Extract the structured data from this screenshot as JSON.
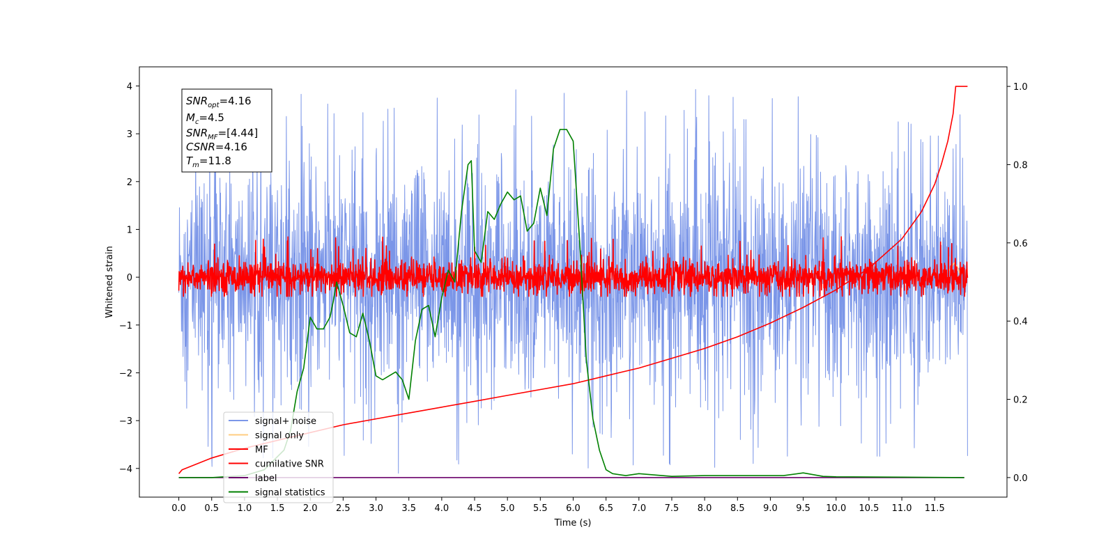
{
  "chart_data": {
    "type": "line",
    "title": "",
    "xlabel": "Time (s)",
    "ylabel": "Whitened strain",
    "xlim": [
      -0.6,
      12.6
    ],
    "ylim_left": [
      -4.6,
      4.4
    ],
    "ylim_right": [
      -0.05,
      1.05
    ],
    "x_ticks": [
      "0.0",
      "0.5",
      "1.0",
      "1.5",
      "2.0",
      "2.5",
      "3.0",
      "3.5",
      "4.0",
      "4.5",
      "5.0",
      "5.5",
      "6.0",
      "6.5",
      "7.0",
      "7.5",
      "8.0",
      "8.5",
      "9.0",
      "9.5",
      "10.0",
      "10.5",
      "11.0",
      "11.5"
    ],
    "y_ticks_left": [
      "−4",
      "−3",
      "−2",
      "−1",
      "0",
      "1",
      "2",
      "3",
      "4"
    ],
    "y_ticks_right": [
      "0.0",
      "0.2",
      "0.4",
      "0.6",
      "0.8",
      "1.0"
    ],
    "stats_box": {
      "snr_opt": "4.16",
      "mc": "4.5",
      "snr_mf": "[4.44]",
      "csnr": "4.16",
      "tm": "11.8"
    },
    "legend": {
      "position": "lower-left",
      "entries": [
        {
          "label": "signal+ noise",
          "color": "#7b96e8"
        },
        {
          "label": "signal only",
          "color": "#ffcc80"
        },
        {
          "label": "MF",
          "color": "#ff0000"
        },
        {
          "label": "cumilative SNR",
          "color": "#ff0000"
        },
        {
          "label": "label",
          "color": "#6a006a"
        },
        {
          "label": "signal statistics",
          "color": "#008000"
        }
      ]
    },
    "series": [
      {
        "name": "signal+ noise",
        "axis": "left",
        "color": "#7b96e8",
        "x_range": [
          0.0,
          12.0
        ],
        "description_values": {
          "center": 0,
          "typical_amplitude": 1.9,
          "max": 4.0,
          "min": -4.1
        }
      },
      {
        "name": "signal only",
        "axis": "left",
        "color": "#ffcc80",
        "x": [
          11.7,
          11.8,
          11.85,
          11.9
        ],
        "y": [
          0.1,
          0.3,
          0.2,
          0.0
        ]
      },
      {
        "name": "MF",
        "axis": "left",
        "color": "#ff0000",
        "x_range": [
          0.0,
          12.0
        ],
        "description_values": {
          "center": 0,
          "typical_amplitude": 0.3,
          "max": 0.9,
          "min": -0.4
        }
      },
      {
        "name": "cumilative SNR",
        "axis": "right",
        "color": "#ff0000",
        "x": [
          0.0,
          0.05,
          0.5,
          1.0,
          1.5,
          2.0,
          2.5,
          3.0,
          3.5,
          4.0,
          4.5,
          5.0,
          5.5,
          6.0,
          6.5,
          7.0,
          7.5,
          8.0,
          8.5,
          9.0,
          9.5,
          10.0,
          10.5,
          11.0,
          11.3,
          11.5,
          11.6,
          11.7,
          11.78,
          11.82,
          12.0
        ],
        "y": [
          0.01,
          0.02,
          0.05,
          0.075,
          0.095,
          0.115,
          0.135,
          0.15,
          0.165,
          0.18,
          0.195,
          0.21,
          0.225,
          0.24,
          0.26,
          0.28,
          0.305,
          0.33,
          0.36,
          0.395,
          0.435,
          0.48,
          0.535,
          0.61,
          0.68,
          0.75,
          0.8,
          0.86,
          0.93,
          1.0,
          1.0
        ]
      },
      {
        "name": "label",
        "axis": "right",
        "color": "#6a006a",
        "x": [
          0.0,
          11.95
        ],
        "y": [
          0.0,
          0.0
        ]
      },
      {
        "name": "signal statistics",
        "axis": "right",
        "color": "#008000",
        "x": [
          0.0,
          0.5,
          1.0,
          1.3,
          1.6,
          1.7,
          1.8,
          1.9,
          2.0,
          2.1,
          2.2,
          2.3,
          2.35,
          2.4,
          2.5,
          2.6,
          2.7,
          2.8,
          2.9,
          3.0,
          3.1,
          3.2,
          3.3,
          3.4,
          3.5,
          3.6,
          3.7,
          3.8,
          3.9,
          4.0,
          4.1,
          4.2,
          4.3,
          4.4,
          4.45,
          4.5,
          4.6,
          4.7,
          4.8,
          4.9,
          5.0,
          5.1,
          5.2,
          5.3,
          5.4,
          5.5,
          5.6,
          5.7,
          5.8,
          5.9,
          6.0,
          6.1,
          6.2,
          6.3,
          6.4,
          6.5,
          6.6,
          6.8,
          7.0,
          7.5,
          8.0,
          8.5,
          9.0,
          9.2,
          9.5,
          9.8,
          10.0,
          11.0,
          11.95
        ],
        "y": [
          0.0,
          0.0,
          0.005,
          0.02,
          0.07,
          0.12,
          0.22,
          0.28,
          0.41,
          0.38,
          0.38,
          0.41,
          0.45,
          0.5,
          0.44,
          0.37,
          0.36,
          0.42,
          0.35,
          0.26,
          0.25,
          0.26,
          0.27,
          0.25,
          0.2,
          0.35,
          0.43,
          0.44,
          0.36,
          0.46,
          0.53,
          0.5,
          0.68,
          0.8,
          0.81,
          0.58,
          0.55,
          0.68,
          0.66,
          0.7,
          0.73,
          0.71,
          0.72,
          0.63,
          0.65,
          0.74,
          0.67,
          0.84,
          0.89,
          0.89,
          0.86,
          0.6,
          0.3,
          0.15,
          0.07,
          0.02,
          0.01,
          0.005,
          0.01,
          0.003,
          0.005,
          0.005,
          0.005,
          0.005,
          0.012,
          0.003,
          0.002,
          0.001,
          0.0
        ]
      }
    ]
  }
}
